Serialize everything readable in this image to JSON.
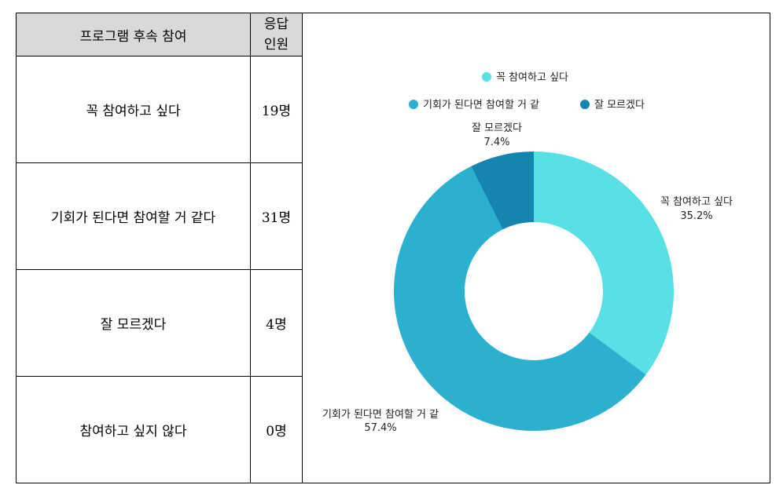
{
  "table": {
    "header": {
      "item": "프로그램 후속 참여",
      "count_line1": "응답",
      "count_line2": "인원"
    },
    "rows": [
      {
        "label": "꼭 참여하고 싶다",
        "count": "19명"
      },
      {
        "label": "기회가 된다면 참여할 거 같다",
        "count": "31명"
      },
      {
        "label": "잘 모르겠다",
        "count": "4명"
      },
      {
        "label": "참여하고 싶지 않다",
        "count": "0명"
      }
    ]
  },
  "chart_data": {
    "type": "pie",
    "donut": true,
    "categories": [
      "꼭 참여하고 싶다",
      "기회가 된다면 참여할 거 같",
      "잘 모르겠다"
    ],
    "values": [
      35.2,
      57.4,
      7.4
    ],
    "labels": [
      "35.2%",
      "57.4%",
      "7.4%"
    ],
    "colors": [
      "#58e0e4",
      "#2bb0cf",
      "#1484b0"
    ],
    "legend_position": "top"
  }
}
